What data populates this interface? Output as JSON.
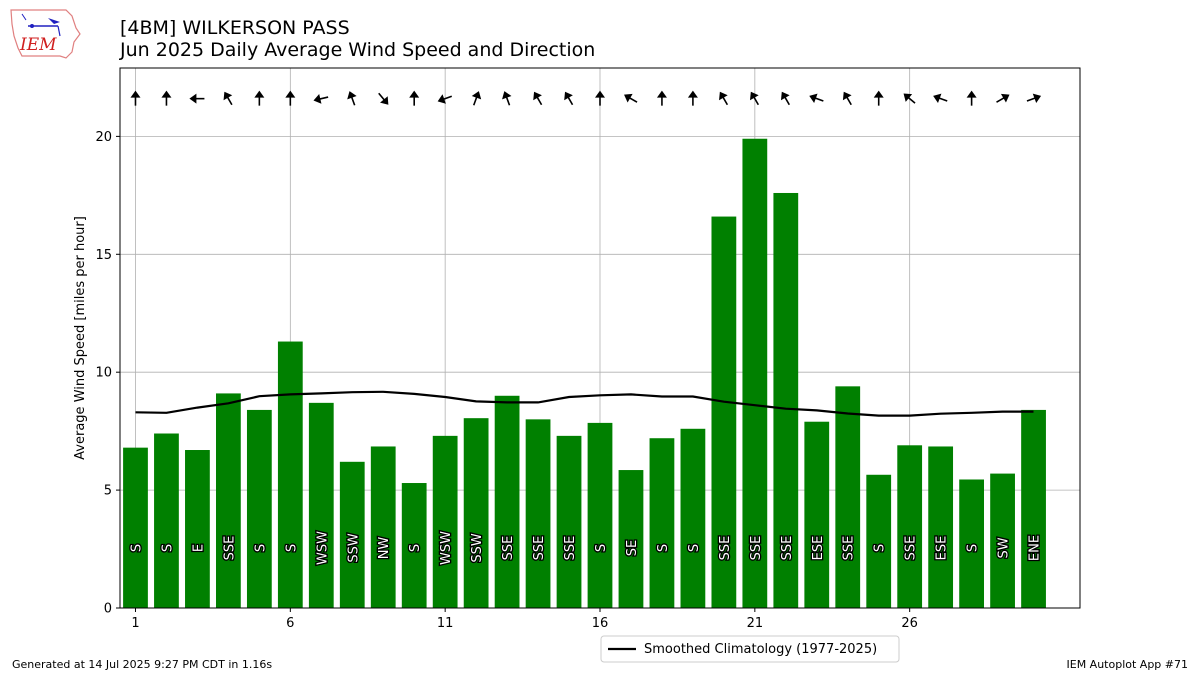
{
  "header": {
    "title_line1": "[4BM] WILKERSON PASS",
    "title_line2": "Jun 2025 Daily Average Wind Speed and Direction",
    "logo_text": "IEM"
  },
  "footer": {
    "left": "Generated at 14 Jul 2025 9:27 PM CDT in 1.16s",
    "right": "IEM Autoplot App #71"
  },
  "colors": {
    "bar": "#008000",
    "climo_line": "#000000",
    "grid": "#b0b0b0"
  },
  "chart_data": {
    "type": "bar",
    "ylabel": "Average Wind Speed [miles per hour]",
    "xlabel": "",
    "xlim": [
      0.5,
      31.5
    ],
    "ylim": [
      0,
      22.9
    ],
    "x_ticks": [
      1,
      6,
      11,
      16,
      21,
      26
    ],
    "y_ticks": [
      0,
      5,
      10,
      15,
      20
    ],
    "grid": true,
    "legend_position": "below",
    "days": [
      1,
      2,
      3,
      4,
      5,
      6,
      7,
      8,
      9,
      10,
      11,
      12,
      13,
      14,
      15,
      16,
      17,
      18,
      19,
      20,
      21,
      22,
      23,
      24,
      25,
      26,
      27,
      28,
      29,
      30
    ],
    "series": [
      {
        "name": "",
        "type": "bar",
        "values": [
          6.8,
          7.4,
          6.7,
          9.1,
          8.4,
          11.3,
          8.7,
          6.2,
          6.85,
          5.3,
          7.3,
          8.05,
          9.0,
          8.0,
          7.3,
          7.85,
          5.85,
          7.2,
          7.6,
          16.6,
          19.9,
          17.6,
          7.9,
          9.4,
          5.65,
          6.9,
          6.85,
          5.45,
          5.7,
          8.4
        ],
        "direction_labels": [
          "S",
          "S",
          "E",
          "SSE",
          "S",
          "S",
          "WSW",
          "SSW",
          "NW",
          "S",
          "WSW",
          "SSW",
          "SSE",
          "SSE",
          "SSE",
          "S",
          "SE",
          "S",
          "S",
          "SSE",
          "SSE",
          "SSE",
          "ESE",
          "SSE",
          "S",
          "SSE",
          "ESE",
          "S",
          "SW",
          "ENE"
        ],
        "arrow_directions_deg": [
          0,
          0,
          270,
          330,
          0,
          0,
          257,
          340,
          140,
          0,
          250,
          20,
          340,
          330,
          330,
          0,
          300,
          0,
          0,
          330,
          330,
          330,
          290,
          330,
          0,
          310,
          290,
          0,
          60,
          70
        ]
      },
      {
        "name": "Smoothed Climatology (1977-2025)",
        "type": "line",
        "values": [
          8.3,
          8.28,
          8.5,
          8.68,
          8.98,
          9.06,
          9.1,
          9.15,
          9.17,
          9.08,
          8.95,
          8.76,
          8.72,
          8.72,
          8.95,
          9.02,
          9.06,
          8.97,
          8.97,
          8.75,
          8.6,
          8.45,
          8.38,
          8.25,
          8.16,
          8.16,
          8.24,
          8.28,
          8.33,
          8.33
        ]
      }
    ]
  }
}
